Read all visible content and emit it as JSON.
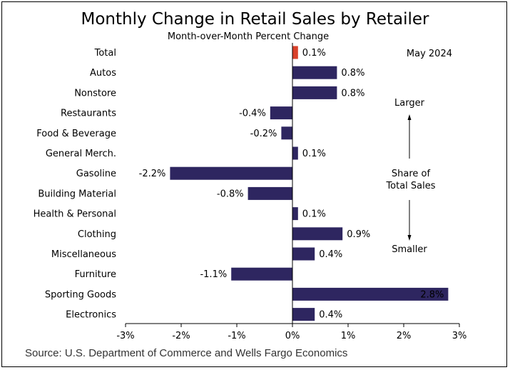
{
  "title": "Monthly Change in Retail Sales by Retailer",
  "subtitle": "Month-over-Month Percent Change",
  "source": "Source: U.S. Department of Commerce and Wells Fargo Economics",
  "date_label": "May 2024",
  "annotation": {
    "top": "Larger",
    "middle_line1": "Share of",
    "middle_line2": "Total Sales",
    "bottom": "Smaller"
  },
  "colors": {
    "bar": "#2e2660",
    "highlight": "#d9412b",
    "axis": "#000000"
  },
  "chart_data": {
    "type": "bar",
    "orientation": "horizontal",
    "categories": [
      "Total",
      "Autos",
      "Nonstore",
      "Restaurants",
      "Food & Beverage",
      "General Merch.",
      "Gasoline",
      "Building Material",
      "Health & Personal",
      "Clothing",
      "Miscellaneous",
      "Furniture",
      "Sporting Goods",
      "Electronics"
    ],
    "values": [
      0.1,
      0.8,
      0.8,
      -0.4,
      -0.2,
      0.1,
      -2.2,
      -0.8,
      0.1,
      0.9,
      0.4,
      -1.1,
      2.8,
      0.4
    ],
    "value_labels": [
      "0.1%",
      "0.8%",
      "0.8%",
      "-0.4%",
      "-0.2%",
      "0.1%",
      "-2.2%",
      "-0.8%",
      "0.1%",
      "0.9%",
      "0.4%",
      "-1.1%",
      "2.8%",
      "0.4%"
    ],
    "highlight_category": "Total",
    "xlim": [
      -3,
      3
    ],
    "xticks": [
      -3,
      -2,
      -1,
      0,
      1,
      2,
      3
    ],
    "xtick_labels": [
      "-3%",
      "-2%",
      "-1%",
      "0%",
      "1%",
      "2%",
      "3%"
    ],
    "title": "Monthly Change in Retail Sales by Retailer",
    "xlabel": "",
    "ylabel": "",
    "grid": false
  }
}
